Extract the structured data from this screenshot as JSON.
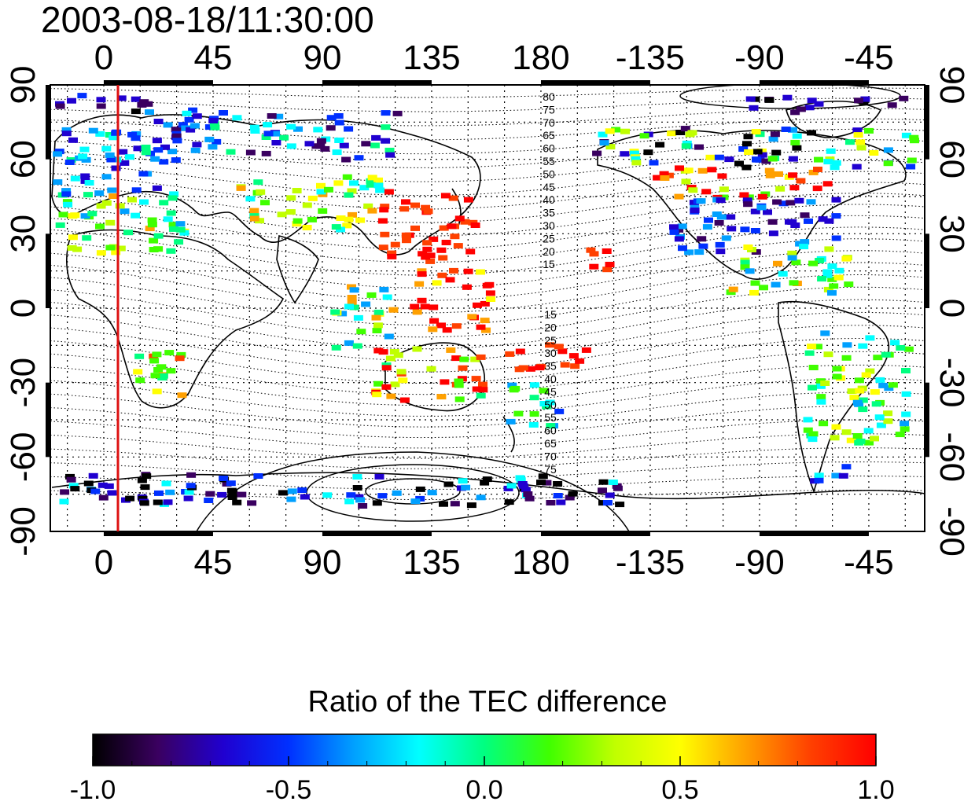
{
  "title": "2003-08-18/11:30:00",
  "map": {
    "lon_ticks": [
      "0",
      "45",
      "90",
      "135",
      "180",
      "-135",
      "-90",
      "-45"
    ],
    "lat_ticks_left": [
      "90",
      "60",
      "30",
      "0",
      "-30",
      "-60",
      "-90"
    ],
    "lat_ticks_right": [
      "90",
      "60",
      "30",
      "0",
      "-30",
      "-60",
      "-90"
    ],
    "contour_labels_north": [
      "80",
      "75",
      "70",
      "65",
      "60",
      "55",
      "50",
      "45",
      "40",
      "35",
      "30",
      "25",
      "20",
      "15"
    ],
    "contour_labels_south": [
      "15",
      "20",
      "25",
      "30",
      "35",
      "40",
      "45",
      "50",
      "55",
      "60",
      "65",
      "70",
      "75"
    ],
    "highlight_line_color": "#dd1111"
  },
  "colorbar": {
    "title": "Ratio of the TEC difference",
    "tick_labels": [
      "-1.0",
      "-0.5",
      "0.0",
      "0.5",
      "1.0"
    ],
    "range": [
      -1.0,
      1.0
    ],
    "colors": [
      "#000000",
      "#3a0060",
      "#2000d0",
      "#0030ff",
      "#00a0ff",
      "#00ffff",
      "#00ff80",
      "#40ff00",
      "#c0ff00",
      "#ffff00",
      "#ffa000",
      "#ff4000",
      "#ff0000"
    ]
  }
}
